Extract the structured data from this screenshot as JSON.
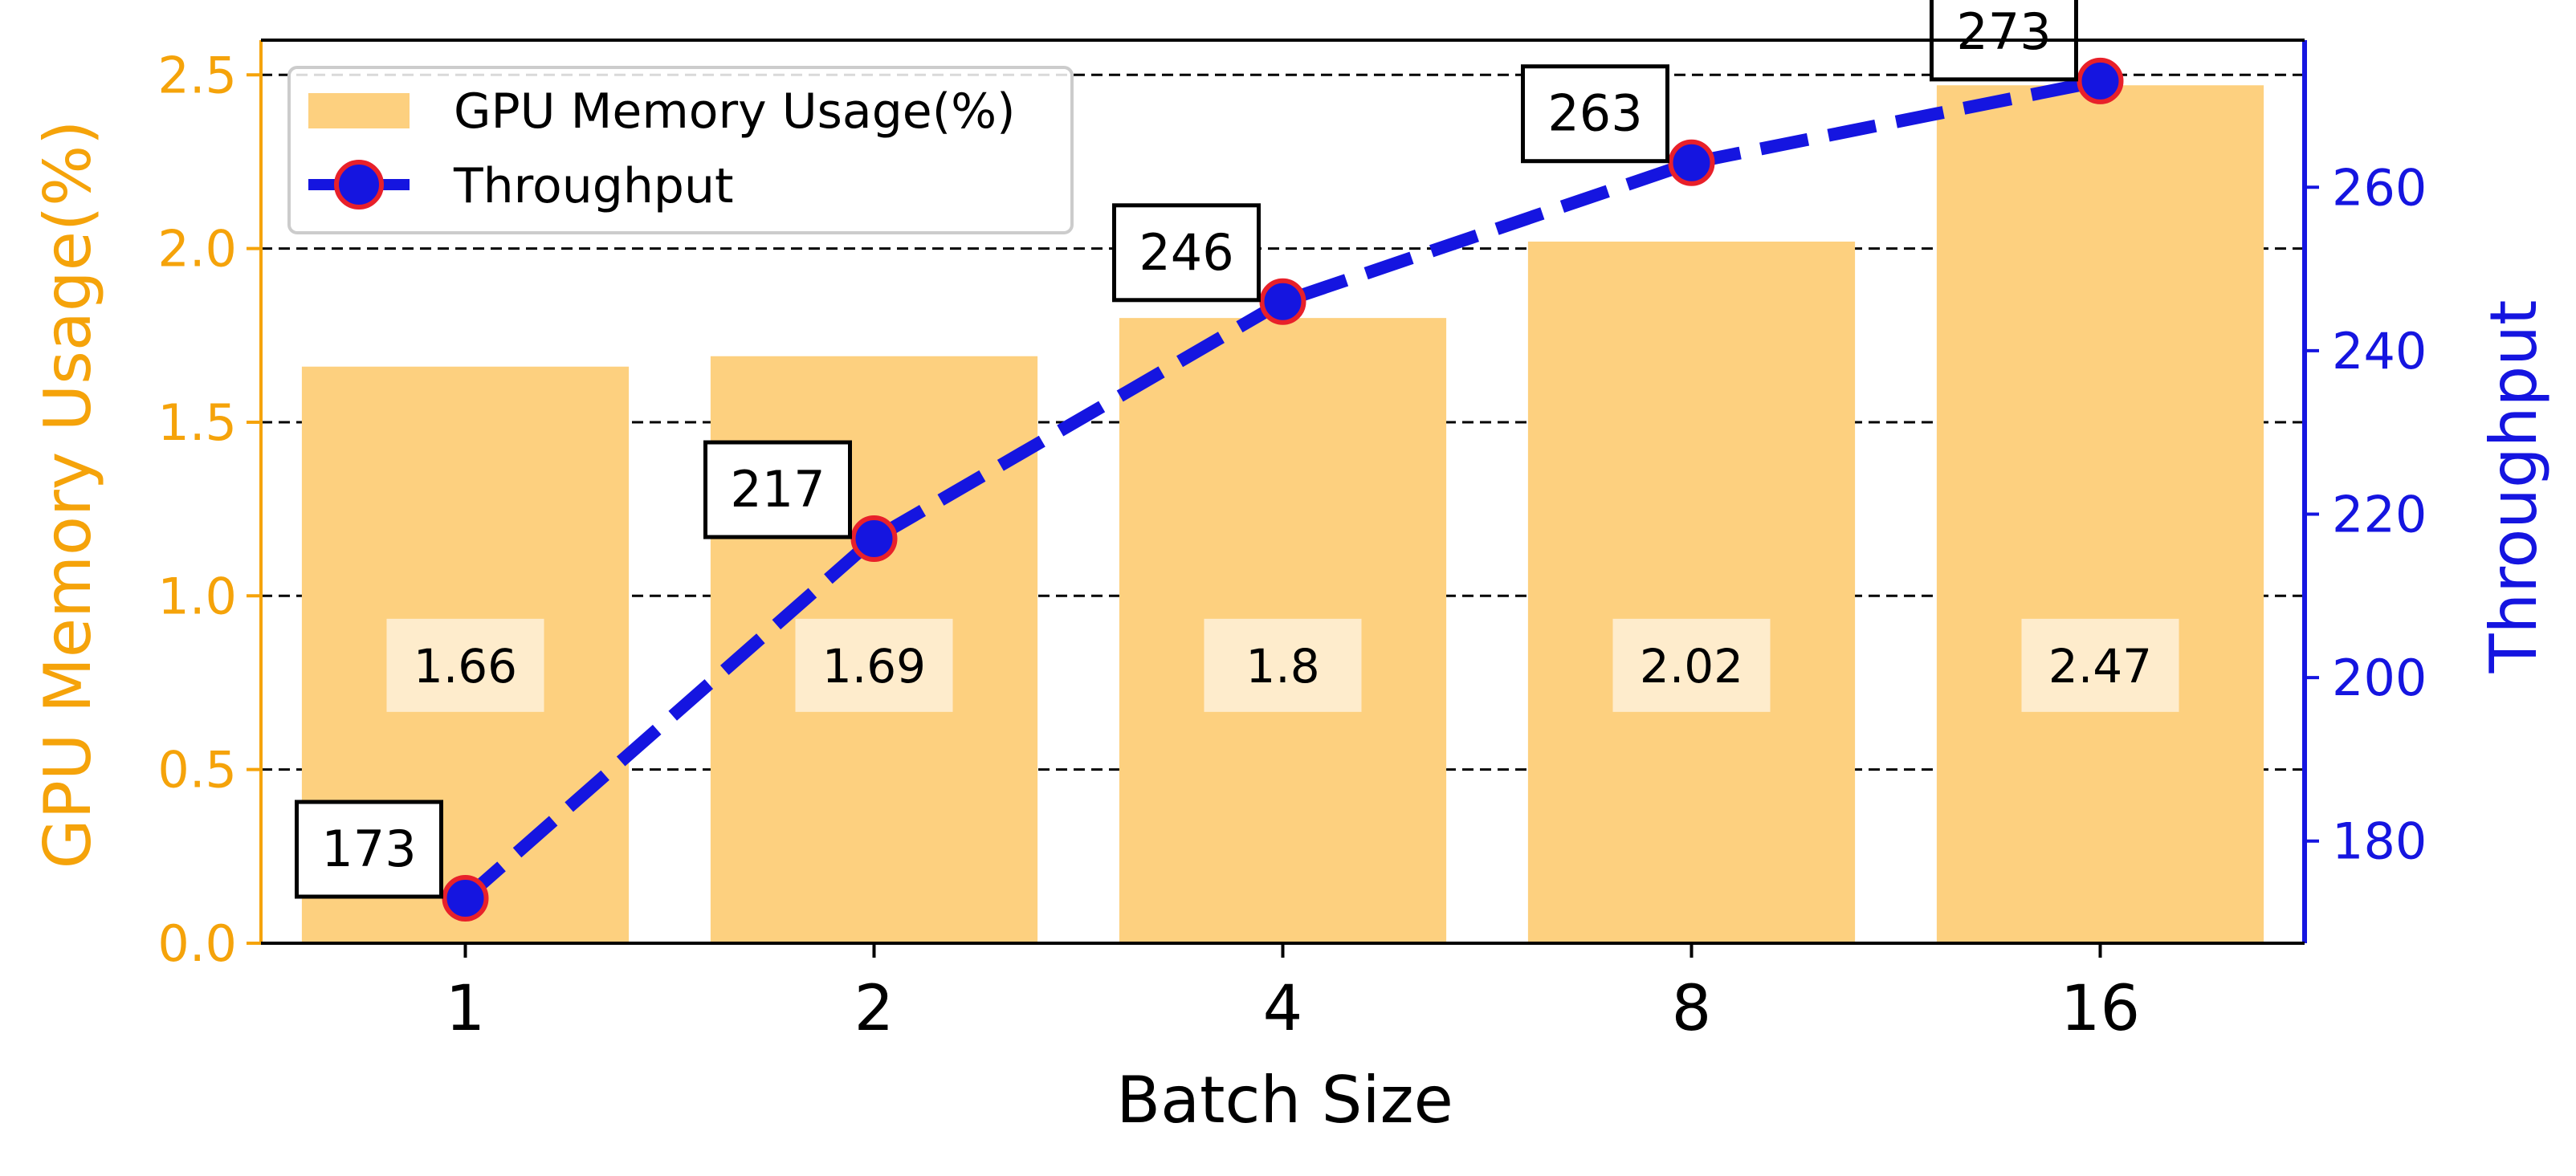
{
  "chart_data": {
    "type": "bar",
    "xlabel": "Batch Size",
    "categories": [
      "1",
      "2",
      "4",
      "8",
      "16"
    ],
    "series": [
      {
        "name": "GPU Memory Usage(%)",
        "type": "bar",
        "axis": "left",
        "values": [
          1.66,
          1.69,
          1.8,
          2.02,
          2.47
        ],
        "labels": [
          "1.66",
          "1.69",
          "1.8",
          "2.02",
          "2.47"
        ],
        "color": "#FDD07F"
      },
      {
        "name": "Throughput",
        "type": "line",
        "axis": "right",
        "values": [
          173,
          217,
          246,
          263,
          273
        ],
        "labels": [
          "173",
          "217",
          "246",
          "263",
          "273"
        ],
        "color": "#1515E0",
        "marker_edge_color": "#E8202A",
        "line_style": "dashed"
      }
    ],
    "y_left": {
      "label": "GPU Memory Usage(%)",
      "range": [
        0,
        2.6
      ],
      "ticks": [
        "0.0",
        "0.5",
        "1.0",
        "1.5",
        "2.0",
        "2.5"
      ],
      "color": "#F5A30A"
    },
    "y_right": {
      "label": "Throughput",
      "range": [
        167.5,
        278
      ],
      "ticks": [
        "180",
        "200",
        "220",
        "240",
        "260"
      ],
      "color": "#1515E0"
    },
    "grid": "horizontal dashed",
    "legend_position": "top-left"
  }
}
